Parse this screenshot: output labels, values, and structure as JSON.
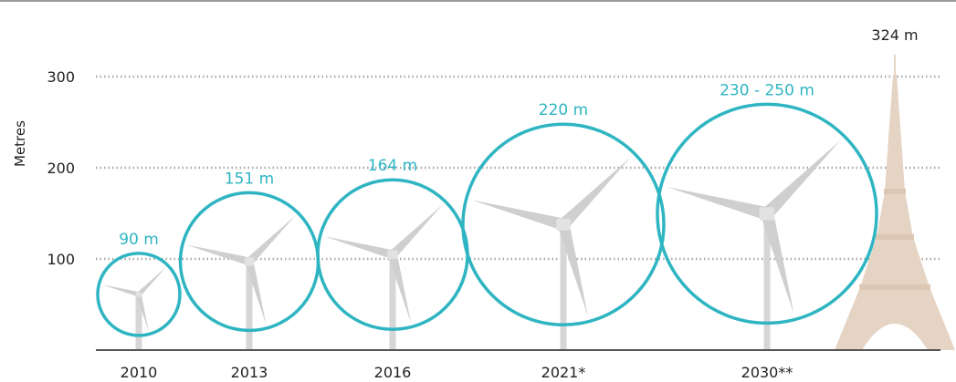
{
  "chart_data": {
    "type": "scatter",
    "ylabel": "Metres",
    "yticks": [
      100,
      200,
      300
    ],
    "ylim": [
      0,
      330
    ],
    "categories": [
      "2010",
      "2013",
      "2016",
      "2021*",
      "2030**"
    ],
    "rotor_diameter_labels": [
      "90 m",
      "151 m",
      "164 m",
      "220 m",
      "230 - 250 m"
    ],
    "rotor_diameter_m": [
      90,
      151,
      164,
      220,
      240
    ],
    "reference": {
      "name": "Eiffel Tower",
      "height_label": "324 m",
      "height_m": 324
    },
    "colors": {
      "rotor": "#2fb5c2",
      "grid": "#a8a8a8",
      "axis": "#555555",
      "tower": "#e5d3c4",
      "turbine": "#d6d6d6"
    }
  }
}
